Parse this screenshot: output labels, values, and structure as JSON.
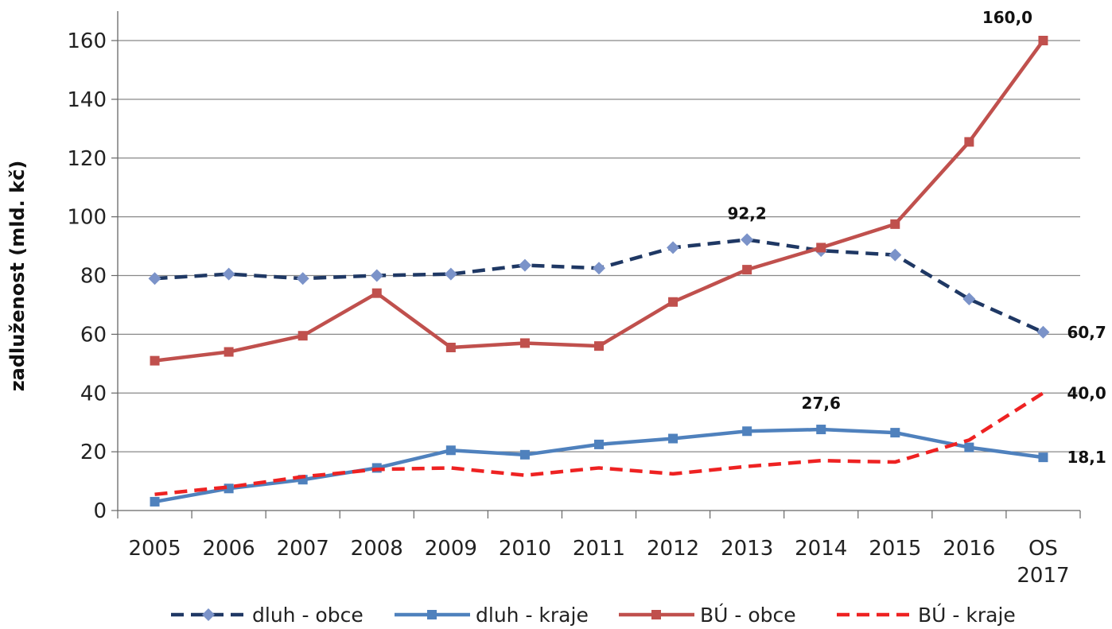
{
  "chart_data": {
    "type": "line",
    "title": "",
    "xlabel": "",
    "ylabel": "zadluženost (mld. kč)",
    "ylim": [
      0,
      160
    ],
    "yticks": [
      0,
      20,
      40,
      60,
      80,
      100,
      120,
      140,
      160
    ],
    "ytick_labels": [
      "0",
      "20",
      "40",
      "60",
      "80",
      "100",
      "120",
      "140",
      "160"
    ],
    "grid": "horizontal",
    "legend_position": "bottom",
    "categories": [
      [
        "2005"
      ],
      [
        "2006"
      ],
      [
        "2007"
      ],
      [
        "2008"
      ],
      [
        "2009"
      ],
      [
        "2010"
      ],
      [
        "2011"
      ],
      [
        "2012"
      ],
      [
        "2013"
      ],
      [
        "2014"
      ],
      [
        "2015"
      ],
      [
        "2016"
      ],
      [
        "OS",
        "2017"
      ]
    ],
    "series": [
      {
        "name": "dluh - obce",
        "color": "#1f3864",
        "marker_color": "#7b93c9",
        "marker": "diamond",
        "dash": "dashed",
        "values": [
          79.0,
          80.5,
          79.0,
          80.0,
          80.5,
          83.5,
          82.5,
          89.5,
          92.2,
          88.5,
          87.0,
          72.0,
          60.7
        ]
      },
      {
        "name": "dluh - kraje",
        "color": "#4f81bd",
        "marker_color": "#4f81bd",
        "marker": "square",
        "dash": "solid",
        "values": [
          3.0,
          7.5,
          10.5,
          14.5,
          20.5,
          19.0,
          22.5,
          24.5,
          27.0,
          27.6,
          26.5,
          21.5,
          18.1
        ]
      },
      {
        "name": "BÚ - obce",
        "color": "#c0504d",
        "marker_color": "#c0504d",
        "marker": "square",
        "dash": "solid",
        "values": [
          51.0,
          54.0,
          59.5,
          74.0,
          55.5,
          57.0,
          56.0,
          71.0,
          82.0,
          89.5,
          97.5,
          125.5,
          160.0
        ]
      },
      {
        "name": "BÚ - kraje",
        "color": "#ee2222",
        "marker_color": "#ee2222",
        "marker": "none",
        "dash": "dashed",
        "values": [
          5.5,
          8.0,
          11.5,
          14.0,
          14.5,
          12.0,
          14.5,
          12.5,
          15.0,
          17.0,
          16.5,
          24.0,
          40.0
        ]
      }
    ],
    "annotations": [
      {
        "text": "160,0",
        "series": 2,
        "index": 12,
        "pos": "above-left"
      },
      {
        "text": "92,2",
        "series": 0,
        "index": 8,
        "pos": "above"
      },
      {
        "text": "60,7",
        "series": 0,
        "index": 12,
        "pos": "right"
      },
      {
        "text": "27,6",
        "series": 1,
        "index": 9,
        "pos": "above"
      },
      {
        "text": "40,0",
        "series": 3,
        "index": 12,
        "pos": "right"
      },
      {
        "text": "18,1",
        "series": 1,
        "index": 12,
        "pos": "right"
      }
    ]
  }
}
